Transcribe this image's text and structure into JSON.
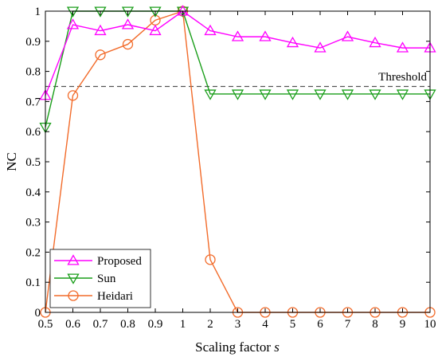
{
  "chart_data": {
    "type": "line",
    "xlabel_main": "Scaling factor",
    "xlabel_var": "s",
    "ylabel": "NC",
    "categories": [
      "0.5",
      "0.6",
      "0.7",
      "0.8",
      "0.9",
      "1",
      "2",
      "3",
      "4",
      "5",
      "6",
      "7",
      "8",
      "9",
      "10"
    ],
    "ylim": [
      0,
      1
    ],
    "yticks": [
      "0",
      "0.1",
      "0.2",
      "0.3",
      "0.4",
      "0.5",
      "0.6",
      "0.7",
      "0.8",
      "0.9",
      "1"
    ],
    "grid": false,
    "legend_position": "bottom-left",
    "threshold": {
      "value": 0.75,
      "label": "Threshold",
      "color": "#555555"
    },
    "series": [
      {
        "name": "Proposed",
        "marker": "triangle-up",
        "color": "#ff00ff",
        "values": [
          0.72,
          0.955,
          0.935,
          0.955,
          0.935,
          1.0,
          0.935,
          0.915,
          0.915,
          0.895,
          0.878,
          0.915,
          0.895,
          0.878,
          0.878
        ]
      },
      {
        "name": "Sun",
        "marker": "triangle-down",
        "color": "#1a9e1a",
        "values": [
          0.615,
          1.0,
          1.0,
          1.0,
          1.0,
          1.0,
          0.725,
          0.725,
          0.725,
          0.725,
          0.725,
          0.725,
          0.725,
          0.725,
          0.725
        ]
      },
      {
        "name": "Heidari",
        "marker": "circle",
        "color": "#f26b2a",
        "values": [
          0.0,
          0.72,
          0.855,
          0.89,
          0.97,
          1.0,
          0.175,
          0.0,
          0.0,
          0.0,
          0.0,
          0.0,
          0.0,
          0.0,
          0.0
        ]
      }
    ]
  }
}
